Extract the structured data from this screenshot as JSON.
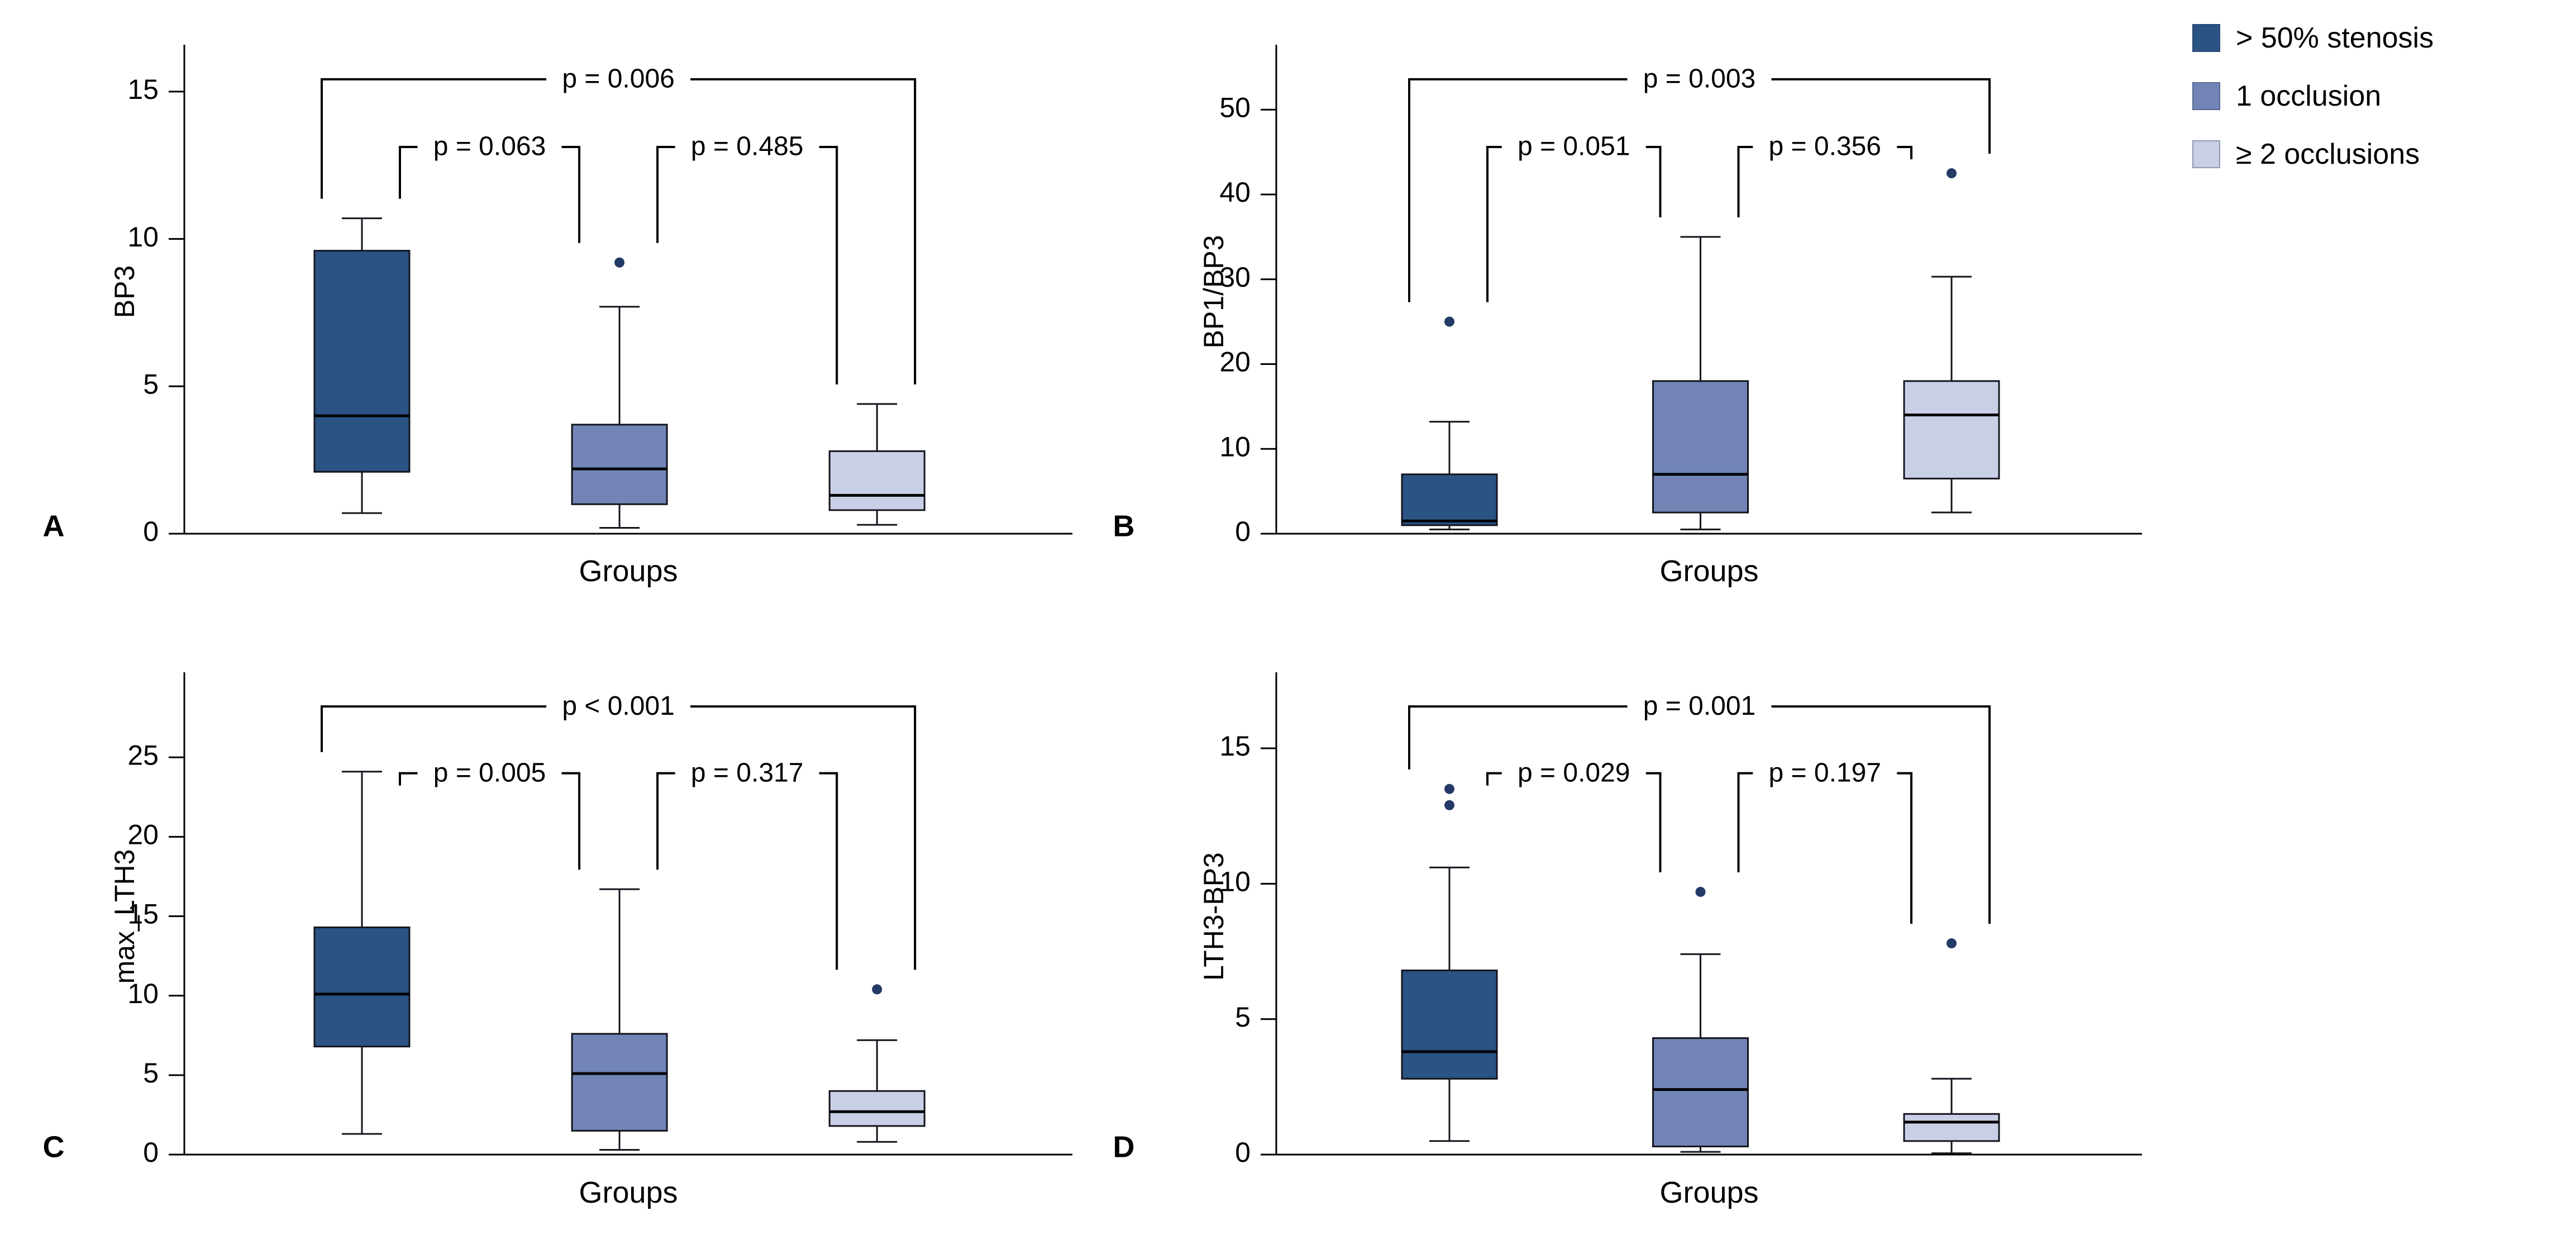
{
  "figure": {
    "title": "Box plots comparing biomarker values across occlusion groups",
    "panel_letters": [
      "A",
      "B",
      "C",
      "D"
    ]
  },
  "legend": {
    "items": [
      {
        "label": "> 50% stenosis",
        "color": "#2b5384"
      },
      {
        "label": "1 occlusion",
        "color": "#7285b6"
      },
      {
        "label": "≥ 2 occlusions",
        "color": "#c9d0e6"
      }
    ]
  },
  "style": {
    "outlier_color": "#233a66",
    "box_stroke": "#14141e",
    "axis_color": "#000000"
  },
  "chart_data": [
    {
      "type": "boxplot",
      "panel": "A",
      "ylabel": "BP3",
      "xlabel": "Groups",
      "ylim": [
        0,
        16.4
      ],
      "yticks": [
        0,
        5,
        10,
        15
      ],
      "groups": [
        "> 50% stenosis",
        "1 occlusion",
        "≥ 2 occlusions"
      ],
      "boxes": [
        {
          "whisker_low": 0.7,
          "q1": 2.1,
          "median": 4.0,
          "q3": 9.6,
          "whisker_high": 10.7,
          "outliers": []
        },
        {
          "whisker_low": 0.2,
          "q1": 1.0,
          "median": 2.2,
          "q3": 3.7,
          "whisker_high": 7.7,
          "outliers": [
            9.2
          ]
        },
        {
          "whisker_low": 0.3,
          "q1": 0.8,
          "median": 1.3,
          "q3": 2.8,
          "whisker_high": 4.4,
          "outliers": []
        }
      ],
      "comparisons": [
        {
          "between": [
            0,
            1
          ],
          "label": "p = 0.063",
          "level": "inner"
        },
        {
          "between": [
            1,
            2
          ],
          "label": "p = 0.485",
          "level": "inner"
        },
        {
          "between": [
            0,
            2
          ],
          "label": "p = 0.006",
          "level": "outer"
        }
      ]
    },
    {
      "type": "boxplot",
      "panel": "B",
      "ylabel": "BP1/BP3",
      "xlabel": "Groups",
      "ylim": [
        0,
        57
      ],
      "yticks": [
        0,
        10,
        20,
        30,
        40,
        50
      ],
      "groups": [
        "> 50% stenosis",
        "1 occlusion",
        "≥ 2 occlusions"
      ],
      "boxes": [
        {
          "whisker_low": 0.5,
          "q1": 1.0,
          "median": 1.5,
          "q3": 7.0,
          "whisker_high": 13.2,
          "outliers": [
            25.0
          ]
        },
        {
          "whisker_low": 0.5,
          "q1": 2.5,
          "median": 7.0,
          "q3": 18.0,
          "whisker_high": 35.0,
          "outliers": []
        },
        {
          "whisker_low": 2.5,
          "q1": 6.5,
          "median": 14.0,
          "q3": 18.0,
          "whisker_high": 30.3,
          "outliers": [
            42.5
          ]
        }
      ],
      "comparisons": [
        {
          "between": [
            0,
            1
          ],
          "label": "p = 0.051",
          "level": "inner"
        },
        {
          "between": [
            1,
            2
          ],
          "label": "p = 0.356",
          "level": "inner"
        },
        {
          "between": [
            0,
            2
          ],
          "label": "p = 0.003",
          "level": "outer"
        }
      ]
    },
    {
      "type": "boxplot",
      "panel": "C",
      "ylabel": "max_LTH3",
      "xlabel": "Groups",
      "ylim": [
        0,
        30
      ],
      "yticks": [
        0,
        5,
        10,
        15,
        20,
        25
      ],
      "groups": [
        "> 50% stenosis",
        "1 occlusion",
        "≥ 2 occlusions"
      ],
      "boxes": [
        {
          "whisker_low": 1.3,
          "q1": 6.8,
          "median": 10.1,
          "q3": 14.3,
          "whisker_high": 24.1,
          "outliers": []
        },
        {
          "whisker_low": 0.3,
          "q1": 1.5,
          "median": 5.1,
          "q3": 7.6,
          "whisker_high": 16.7,
          "outliers": []
        },
        {
          "whisker_low": 0.8,
          "q1": 1.8,
          "median": 2.7,
          "q3": 4.0,
          "whisker_high": 7.2,
          "outliers": [
            10.4
          ]
        }
      ],
      "comparisons": [
        {
          "between": [
            0,
            1
          ],
          "label": "p = 0.005",
          "level": "inner"
        },
        {
          "between": [
            1,
            2
          ],
          "label": "p = 0.317",
          "level": "inner"
        },
        {
          "between": [
            0,
            2
          ],
          "label": "p < 0.001",
          "level": "outer"
        }
      ]
    },
    {
      "type": "boxplot",
      "panel": "D",
      "ylabel": "LTH3-BP3",
      "xlabel": "Groups",
      "ylim": [
        0,
        17.6
      ],
      "yticks": [
        0,
        5,
        10,
        15
      ],
      "groups": [
        "> 50% stenosis",
        "1 occlusion",
        "≥ 2 occlusions"
      ],
      "boxes": [
        {
          "whisker_low": 0.5,
          "q1": 2.8,
          "median": 3.8,
          "q3": 6.8,
          "whisker_high": 10.6,
          "outliers": [
            12.9,
            13.5
          ]
        },
        {
          "whisker_low": 0.1,
          "q1": 0.3,
          "median": 2.4,
          "q3": 4.3,
          "whisker_high": 7.4,
          "outliers": [
            9.7
          ]
        },
        {
          "whisker_low": 0.05,
          "q1": 0.5,
          "median": 1.2,
          "q3": 1.5,
          "whisker_high": 2.8,
          "outliers": [
            7.8
          ]
        }
      ],
      "comparisons": [
        {
          "between": [
            0,
            1
          ],
          "label": "p = 0.029",
          "level": "inner"
        },
        {
          "between": [
            1,
            2
          ],
          "label": "p = 0.197",
          "level": "inner"
        },
        {
          "between": [
            0,
            2
          ],
          "label": "p = 0.001",
          "level": "outer"
        }
      ]
    }
  ]
}
